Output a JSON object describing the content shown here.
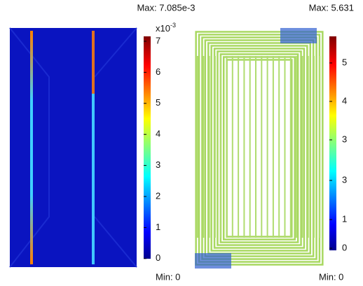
{
  "left_plot": {
    "max_label": "Max: 7.085e-3",
    "min_label": "Min: 0",
    "exponent_base": "x10",
    "exponent_power": "-3",
    "ticks": [
      "7",
      "6",
      "5",
      "4",
      "3",
      "2",
      "1",
      "0"
    ]
  },
  "right_plot": {
    "max_label": "Max: 5.631",
    "min_label": "Min: 0",
    "ticks": [
      "5",
      "4",
      "3",
      "3",
      "1",
      "0"
    ]
  }
}
